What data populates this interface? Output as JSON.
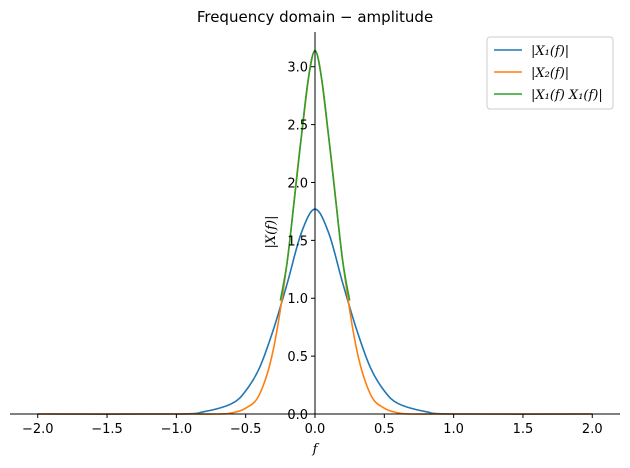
{
  "chart_data": {
    "type": "line",
    "title": "Frequency domain − amplitude",
    "xlabel": "f",
    "ylabel": "|X(f)|",
    "xlim": [
      -2.2,
      2.2
    ],
    "ylim": [
      0,
      3.3
    ],
    "xticks": [
      -2.0,
      -1.5,
      -1.0,
      -0.5,
      0.0,
      0.5,
      1.0,
      1.5,
      2.0
    ],
    "xtick_labels": [
      "−2.0",
      "−1.5",
      "−1.0",
      "−0.5",
      "0.0",
      "0.5",
      "1.0",
      "1.5",
      "2.0"
    ],
    "yticks": [
      0.0,
      0.5,
      1.0,
      1.5,
      2.0,
      2.5,
      3.0
    ],
    "ytick_labels": [
      "0.0",
      "0.5",
      "1.0",
      "1.5",
      "2.0",
      "2.5",
      "3.0"
    ],
    "grid": false,
    "legend_position": "top-right",
    "series": [
      {
        "name": "|X₁(f)|",
        "color": "#1f77b4",
        "x": [
          -2.0,
          -1.0,
          -0.8,
          -0.6,
          -0.5,
          -0.4,
          -0.3,
          -0.2,
          -0.1,
          0.0,
          0.1,
          0.2,
          0.3,
          0.4,
          0.5,
          0.6,
          0.8,
          1.0,
          2.0
        ],
        "y": [
          0.0,
          0.0,
          0.02,
          0.09,
          0.2,
          0.4,
          0.73,
          1.13,
          1.56,
          1.77,
          1.56,
          1.13,
          0.73,
          0.4,
          0.2,
          0.09,
          0.02,
          0.0,
          0.0
        ]
      },
      {
        "name": "|X₂(f)|",
        "color": "#ff7f0e",
        "x": [
          -2.0,
          -1.0,
          -0.7,
          -0.6,
          -0.5,
          -0.4,
          -0.3,
          -0.2,
          -0.1,
          0.0,
          0.1,
          0.2,
          0.3,
          0.4,
          0.5,
          0.6,
          0.7,
          1.0,
          2.0
        ],
        "y": [
          0.0,
          0.0,
          0.0,
          0.01,
          0.05,
          0.17,
          0.56,
          1.32,
          2.38,
          3.14,
          2.38,
          1.32,
          0.56,
          0.17,
          0.05,
          0.01,
          0.0,
          0.0,
          0.0
        ]
      },
      {
        "name": "|X₁(f) X₁(f)|",
        "color": "#2ca02c",
        "x": [
          -0.25,
          -0.2,
          -0.15,
          -0.1,
          -0.05,
          0.0,
          0.05,
          0.1,
          0.15,
          0.2,
          0.25
        ],
        "y": [
          0.98,
          1.32,
          1.84,
          2.38,
          2.88,
          3.14,
          2.88,
          2.38,
          1.84,
          1.32,
          0.98
        ]
      }
    ]
  }
}
